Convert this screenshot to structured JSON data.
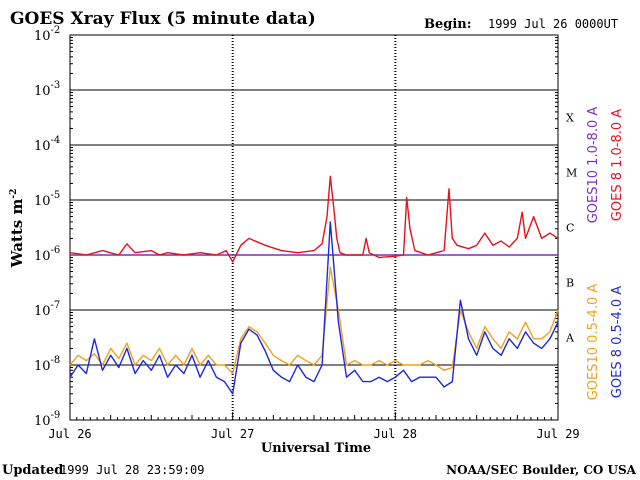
{
  "chart_data": {
    "type": "line",
    "title": "GOES Xray Flux (5 minute data)",
    "begin_label": "Begin:",
    "begin_value": "1999 Jul 26 0000UT",
    "ylabel": "Watts m",
    "ylabel_exp": "-2",
    "xlabel": "Universal Time",
    "y_scale": "log",
    "ylim": [
      1e-09,
      0.01
    ],
    "y_ticks": [
      {
        "base": "10",
        "exp": "-2"
      },
      {
        "base": "10",
        "exp": "-3"
      },
      {
        "base": "10",
        "exp": "-4"
      },
      {
        "base": "10",
        "exp": "-5"
      },
      {
        "base": "10",
        "exp": "-6"
      },
      {
        "base": "10",
        "exp": "-7"
      },
      {
        "base": "10",
        "exp": "-8"
      },
      {
        "base": "10",
        "exp": "-9"
      }
    ],
    "x_ticks": [
      "Jul 26",
      "Jul 27",
      "Jul 28",
      "Jul 29"
    ],
    "flare_classes": [
      "X",
      "M",
      "C",
      "B",
      "A"
    ],
    "grid": "horizontal at each decade from 1e-8 to 1e-3; dotted day separators",
    "series": [
      {
        "name": "GOES10 1.0-8.0 A",
        "color": "#7b2fbf",
        "x_days": [
          0,
          3
        ],
        "y": [
          1e-06,
          1e-06
        ]
      },
      {
        "name": "GOES 8 1.0-8.0 A",
        "color": "#e8101c",
        "x_days": [
          0.0,
          0.1,
          0.2,
          0.3,
          0.35,
          0.4,
          0.5,
          0.55,
          0.6,
          0.7,
          0.8,
          0.9,
          0.96,
          1.0,
          1.05,
          1.1,
          1.2,
          1.3,
          1.4,
          1.5,
          1.55,
          1.58,
          1.6,
          1.62,
          1.64,
          1.66,
          1.7,
          1.8,
          1.82,
          1.84,
          1.9,
          2.0,
          2.05,
          2.07,
          2.09,
          2.12,
          2.2,
          2.3,
          2.33,
          2.35,
          2.38,
          2.45,
          2.5,
          2.55,
          2.6,
          2.65,
          2.7,
          2.75,
          2.78,
          2.8,
          2.85,
          2.9,
          2.95,
          3.0
        ],
        "y": [
          1.1e-06,
          1e-06,
          1.2e-06,
          1e-06,
          1.6e-06,
          1.1e-06,
          1.2e-06,
          1e-06,
          1.1e-06,
          1e-06,
          1.1e-06,
          1e-06,
          1.2e-06,
          7.5e-07,
          1.5e-06,
          2e-06,
          1.5e-06,
          1.2e-06,
          1.1e-06,
          1.2e-06,
          1.6e-06,
          5e-06,
          2.7e-05,
          8e-06,
          2e-06,
          1.1e-06,
          1e-06,
          1e-06,
          2e-06,
          1.1e-06,
          9e-07,
          9.5e-07,
          1e-06,
          1.1e-05,
          3e-06,
          1.2e-06,
          1e-06,
          1.2e-06,
          1.6e-05,
          2e-06,
          1.5e-06,
          1.3e-06,
          1.5e-06,
          2.5e-06,
          1.5e-06,
          1.8e-06,
          1.4e-06,
          2e-06,
          6e-06,
          2e-06,
          5e-06,
          2e-06,
          2.5e-06,
          2e-06
        ]
      },
      {
        "name": "GOES10 0.5-4.0 A",
        "color": "#f0a01e",
        "x_days": [
          0.0,
          0.05,
          0.1,
          0.15,
          0.2,
          0.25,
          0.3,
          0.35,
          0.4,
          0.45,
          0.5,
          0.55,
          0.6,
          0.65,
          0.7,
          0.75,
          0.8,
          0.85,
          0.9,
          0.95,
          1.0,
          1.05,
          1.1,
          1.15,
          1.2,
          1.25,
          1.3,
          1.35,
          1.4,
          1.45,
          1.5,
          1.55,
          1.6,
          1.65,
          1.7,
          1.75,
          1.8,
          1.85,
          1.9,
          1.95,
          2.0,
          2.05,
          2.1,
          2.15,
          2.2,
          2.25,
          2.3,
          2.35,
          2.4,
          2.45,
          2.5,
          2.55,
          2.6,
          2.65,
          2.7,
          2.75,
          2.8,
          2.85,
          2.9,
          2.95,
          3.0
        ],
        "y": [
          1e-08,
          1.5e-08,
          1.2e-08,
          1.6e-08,
          1e-08,
          2e-08,
          1.3e-08,
          2.5e-08,
          1e-08,
          1.5e-08,
          1.2e-08,
          2e-08,
          1e-08,
          1.5e-08,
          1e-08,
          2e-08,
          1e-08,
          1.5e-08,
          1e-08,
          1e-08,
          7e-09,
          3e-08,
          5e-08,
          4e-08,
          2.5e-08,
          1.5e-08,
          1.2e-08,
          1e-08,
          1.5e-08,
          1.2e-08,
          1e-08,
          1.5e-08,
          6e-07,
          1e-07,
          1e-08,
          1.2e-08,
          1e-08,
          1e-08,
          1.2e-08,
          1e-08,
          1.2e-08,
          1e-08,
          1e-08,
          1e-08,
          1.2e-08,
          1e-08,
          8e-09,
          9e-09,
          1e-07,
          4e-08,
          2e-08,
          5e-08,
          3e-08,
          2e-08,
          4e-08,
          3e-08,
          6e-08,
          3e-08,
          3e-08,
          4e-08,
          1e-07
        ]
      },
      {
        "name": "GOES 8 0.5-4.0 A",
        "color": "#1c28e0",
        "x_days": [
          0.0,
          0.05,
          0.1,
          0.15,
          0.2,
          0.25,
          0.3,
          0.35,
          0.4,
          0.45,
          0.5,
          0.55,
          0.6,
          0.65,
          0.7,
          0.75,
          0.8,
          0.85,
          0.9,
          0.95,
          1.0,
          1.05,
          1.1,
          1.15,
          1.2,
          1.25,
          1.3,
          1.35,
          1.4,
          1.45,
          1.5,
          1.55,
          1.6,
          1.65,
          1.7,
          1.75,
          1.8,
          1.85,
          1.9,
          1.95,
          2.0,
          2.05,
          2.1,
          2.15,
          2.2,
          2.25,
          2.3,
          2.35,
          2.4,
          2.45,
          2.5,
          2.55,
          2.6,
          2.65,
          2.7,
          2.75,
          2.8,
          2.85,
          2.9,
          2.95,
          3.0
        ],
        "y": [
          6e-09,
          1e-08,
          7e-09,
          3e-08,
          8e-09,
          1.5e-08,
          9e-09,
          2e-08,
          7e-09,
          1.2e-08,
          8e-09,
          1.5e-08,
          6e-09,
          1e-08,
          7e-09,
          1.5e-08,
          6e-09,
          1.2e-08,
          6e-09,
          5e-09,
          3e-09,
          2.5e-08,
          4.5e-08,
          3.5e-08,
          1.8e-08,
          8e-09,
          6e-09,
          5e-09,
          1e-08,
          6e-09,
          5e-09,
          1e-08,
          4e-06,
          6e-08,
          6e-09,
          8e-09,
          5e-09,
          5e-09,
          6e-09,
          5e-09,
          6e-09,
          8e-09,
          5e-09,
          6e-09,
          6e-09,
          6e-09,
          4e-09,
          5e-09,
          1.5e-07,
          3e-08,
          1.5e-08,
          4e-08,
          2e-08,
          1.5e-08,
          3e-08,
          2e-08,
          4e-08,
          2.5e-08,
          2e-08,
          3e-08,
          6e-08
        ]
      }
    ]
  },
  "footer": {
    "updated_label": "Updated",
    "updated_value": "1999 Jul 28 23:59:09",
    "credit": "NOAA/SEC Boulder, CO USA"
  }
}
